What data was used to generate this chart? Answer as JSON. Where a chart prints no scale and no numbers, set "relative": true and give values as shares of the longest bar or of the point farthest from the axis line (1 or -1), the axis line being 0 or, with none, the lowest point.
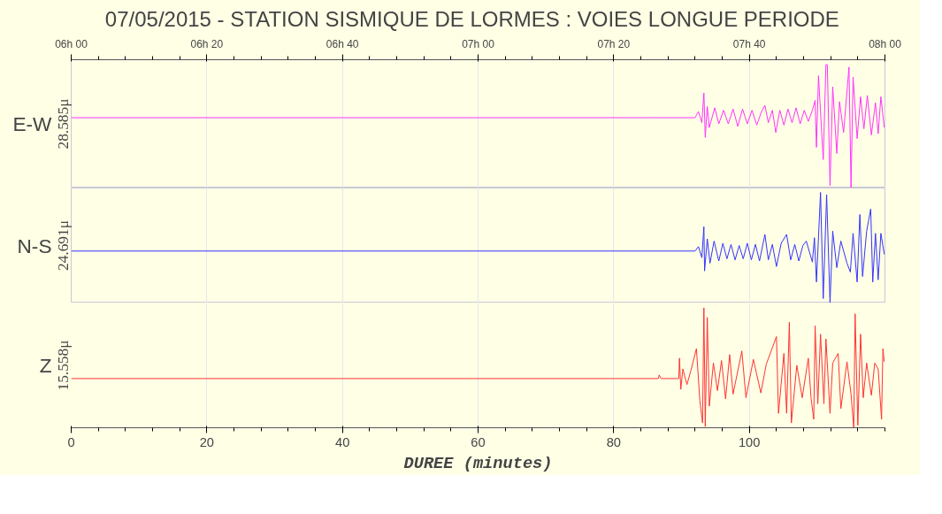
{
  "chart_data": [
    {
      "type": "line",
      "title": "07/05/2015  -  STATION SISMIQUE DE LORMES : VOIES LONGUE PERIODE",
      "ylabel": "E-W",
      "annotations": [
        "28.585μ"
      ],
      "relative": true,
      "xlim": [
        0,
        120
      ],
      "x2lim": [
        "2015-05-07T06:00",
        "2015-05-07T08:00"
      ],
      "x2ticks": [
        {
          "value": "2015-05-07T06:00",
          "label": "06h 00"
        },
        {
          "value": "2015-05-07T06:20",
          "label": "06h 20"
        },
        {
          "value": "2015-05-07T06:40",
          "label": "06h 40"
        },
        {
          "value": "2015-05-07T07:00",
          "label": "07h 00"
        },
        {
          "value": "2015-05-07T07:20",
          "label": "07h 20"
        },
        {
          "value": "2015-05-07T07:40",
          "label": "07h 40"
        },
        {
          "value": "2015-05-07T08:00",
          "label": "08h 00"
        }
      ],
      "tick_labels": false,
      "grid": "x",
      "series": [
        {
          "color": "#ff33ff",
          "x": [
            0,
            85.1,
            92.0,
            92.5,
            93.0,
            93.3,
            93.5,
            93.8,
            94.1,
            94.9,
            95.5,
            96.2,
            96.9,
            97.6,
            98.3,
            99.0,
            99.7,
            100.4,
            101.1,
            101.8,
            102.3,
            102.8,
            103.4,
            103.9,
            104.5,
            105.1,
            105.7,
            106.3,
            106.9,
            107.5,
            108.1,
            108.7,
            109.3,
            109.7,
            109.9,
            110.2,
            110.9,
            111.3,
            111.5,
            111.9,
            112.3,
            112.9,
            113.3,
            113.9,
            114.7,
            115.0,
            115.3,
            115.9,
            116.4,
            116.9,
            117.4,
            118.0,
            118.6,
            119.0,
            119.4,
            119.9
          ],
          "values": [
            0.57,
            0.57,
            0.57,
            0.62,
            0.53,
            0.77,
            0.41,
            0.66,
            0.49,
            0.65,
            0.52,
            0.63,
            0.52,
            0.64,
            0.5,
            0.64,
            0.52,
            0.63,
            0.51,
            0.62,
            0.67,
            0.53,
            0.63,
            0.45,
            0.63,
            0.51,
            0.64,
            0.53,
            0.65,
            0.52,
            0.63,
            0.54,
            0.63,
            0.71,
            0.33,
            0.91,
            0.23,
            1,
            1,
            0.02,
            0.82,
            0.28,
            0.7,
            0.45,
            0.98,
            0,
            0.9,
            0.4,
            0.74,
            0.48,
            0.75,
            0.43,
            0.69,
            0.44,
            0.74,
            0.49
          ]
        }
      ]
    },
    {
      "type": "line",
      "ylabel": "N-S",
      "annotations": [
        "24.691μ"
      ],
      "relative": true,
      "xlim": [
        0,
        120
      ],
      "tick_labels": false,
      "grid": "x",
      "series": [
        {
          "color": "#3333ff",
          "x": [
            0,
            85.1,
            92.0,
            92.5,
            93.0,
            93.3,
            93.4,
            93.8,
            94.2,
            94.8,
            95.5,
            96.1,
            96.7,
            97.3,
            97.9,
            98.5,
            99.1,
            99.7,
            100.3,
            100.9,
            101.5,
            102.3,
            102.8,
            103.4,
            104.0,
            104.7,
            105.5,
            106.1,
            106.7,
            107.3,
            107.9,
            108.4,
            109.3,
            109.6,
            109.9,
            110.5,
            110.9,
            111.4,
            111.9,
            112.3,
            112.9,
            113.5,
            114.4,
            114.9,
            115.3,
            115.9,
            116.3,
            116.7,
            117.3,
            117.9,
            118.2,
            118.6,
            119.0,
            119.4,
            119.9
          ],
          "values": [
            0.47,
            0.47,
            0.47,
            0.51,
            0.41,
            0.69,
            0.29,
            0.58,
            0.36,
            0.56,
            0.38,
            0.54,
            0.4,
            0.53,
            0.39,
            0.52,
            0.4,
            0.54,
            0.39,
            0.53,
            0.38,
            0.62,
            0.39,
            0.53,
            0.33,
            0.54,
            0.62,
            0.39,
            0.53,
            0.38,
            0.52,
            0.56,
            0.37,
            0.59,
            0.19,
            1,
            0.04,
            0.98,
            0,
            0.65,
            0.32,
            0.56,
            0.36,
            0.28,
            0.63,
            0.19,
            0.8,
            0.24,
            0.65,
            0.85,
            0.19,
            0.63,
            0.21,
            0.63,
            0.44
          ]
        }
      ]
    },
    {
      "type": "line",
      "ylabel": "Z",
      "xlabel": "DUREE (minutes)",
      "annotations": [
        "15.558μ"
      ],
      "relative": true,
      "xlim": [
        0,
        120
      ],
      "xticks": [
        0,
        20,
        40,
        60,
        80,
        100
      ],
      "tick_labels": "x",
      "grid": "x",
      "series": [
        {
          "color": "#ff3333",
          "x": [
            0,
            83.8,
            86.6,
            86.7,
            87.0,
            89.6,
            89.7,
            89.9,
            90.2,
            90.8,
            91.4,
            92.2,
            92.7,
            93.1,
            93.3,
            93.5,
            93.8,
            94.1,
            94.7,
            95.3,
            95.9,
            96.5,
            97.1,
            97.6,
            98.9,
            99.5,
            100.6,
            101.7,
            102.5,
            104.0,
            104.3,
            105.1,
            105.5,
            105.9,
            106.2,
            107.0,
            107.8,
            108.7,
            109.1,
            109.5,
            109.7,
            110.1,
            110.5,
            111.0,
            111.3,
            111.9,
            112.3,
            113.1,
            113.5,
            114.4,
            115.0,
            115.4,
            115.6,
            116.0,
            116.4,
            116.8,
            117.3,
            118.0,
            118.5,
            119.0,
            119.5,
            119.7,
            119.9
          ],
          "values": [
            0.41,
            0.41,
            0.41,
            0.44,
            0.41,
            0.41,
            0.58,
            0.32,
            0.49,
            0.36,
            0.48,
            0.66,
            0.23,
            0.04,
            1,
            0.01,
            0.92,
            0.18,
            0.54,
            0.31,
            0.56,
            0.24,
            0.61,
            0.28,
            0.64,
            0.25,
            0.57,
            0.29,
            0.53,
            0.76,
            0.12,
            0.62,
            0.12,
            0.88,
            0.04,
            0.52,
            0.25,
            0.58,
            0.25,
            0.07,
            0.85,
            0.2,
            0.78,
            0.2,
            0.74,
            0.12,
            0.54,
            0.62,
            0.16,
            0.55,
            0.28,
            0,
            0.95,
            0.02,
            0.78,
            0.25,
            0.54,
            0.27,
            0.54,
            0.49,
            0.07,
            0.66,
            0.55
          ]
        }
      ]
    }
  ]
}
